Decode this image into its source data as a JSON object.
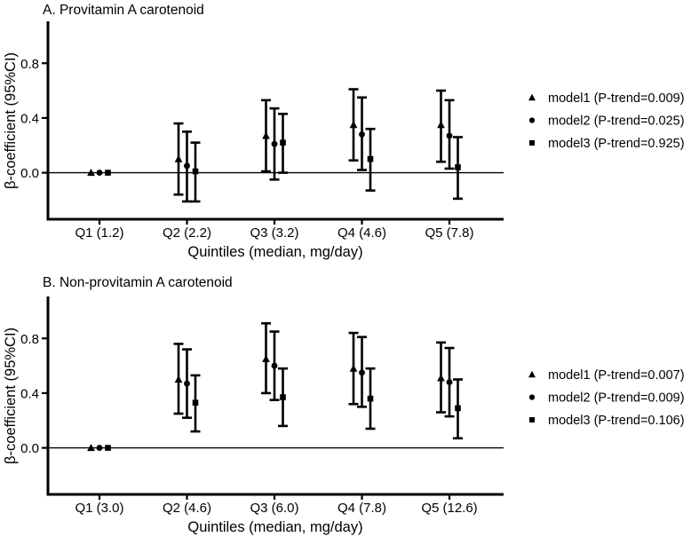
{
  "page": {
    "background": "#ffffff",
    "foreground": "#000000"
  },
  "chart_data": [
    {
      "type": "errorbar",
      "panel_label": "A",
      "title": "A. Provitamin A carotenoid",
      "xlabel": "Quintiles (median, mg/day)",
      "ylabel": "β-coefficient (95%CI)",
      "categories": [
        "Q1 (1.2)",
        "Q2 (2.2)",
        "Q3 (3.2)",
        "Q4 (4.6)",
        "Q5 (7.8)"
      ],
      "yticks": [
        0.0,
        0.4,
        0.8
      ],
      "ytick_labels": [
        "0.0",
        "0.4",
        "0.8"
      ],
      "ylim": [
        -0.34,
        1.1
      ],
      "grid": false,
      "legend_position": "right",
      "reference_line": 0,
      "series": [
        {
          "name": "model1 (P-trend=0.009)",
          "marker": "triangle",
          "values": [
            0,
            0.1,
            0.27,
            0.35,
            0.35
          ],
          "ci_low": [
            0,
            -0.16,
            0.01,
            0.09,
            0.08
          ],
          "ci_high": [
            0,
            0.36,
            0.53,
            0.61,
            0.6
          ]
        },
        {
          "name": "model2 (P-trend=0.025)",
          "marker": "circle",
          "values": [
            0,
            0.05,
            0.21,
            0.28,
            0.27
          ],
          "ci_low": [
            0,
            -0.21,
            -0.05,
            0.02,
            0.03
          ],
          "ci_high": [
            0,
            0.3,
            0.47,
            0.55,
            0.53
          ]
        },
        {
          "name": "model3 (P-trend=0.925)",
          "marker": "square",
          "values": [
            0,
            0.01,
            0.22,
            0.1,
            0.04
          ],
          "ci_low": [
            0,
            -0.21,
            0.0,
            -0.13,
            -0.19
          ],
          "ci_high": [
            0,
            0.22,
            0.43,
            0.32,
            0.26
          ]
        }
      ]
    },
    {
      "type": "errorbar",
      "panel_label": "B",
      "title": "B. Non-provitamin A carotenoid",
      "xlabel": "Quintiles (median, mg/day)",
      "ylabel": "β-coefficient (95%CI)",
      "categories": [
        "Q1 (3.0)",
        "Q2 (4.6)",
        "Q3 (6.0)",
        "Q4 (7.8)",
        "Q5 (12.6)"
      ],
      "yticks": [
        0.0,
        0.4,
        0.8
      ],
      "ytick_labels": [
        "0.0",
        "0.4",
        "0.8"
      ],
      "ylim": [
        -0.34,
        1.1
      ],
      "grid": false,
      "legend_position": "right",
      "reference_line": 0,
      "series": [
        {
          "name": "model1 (P-trend=0.007)",
          "marker": "triangle",
          "values": [
            0,
            0.5,
            0.65,
            0.58,
            0.51
          ],
          "ci_low": [
            0,
            0.25,
            0.4,
            0.32,
            0.26
          ],
          "ci_high": [
            0,
            0.76,
            0.91,
            0.84,
            0.77
          ]
        },
        {
          "name": "model2 (P-trend=0.009)",
          "marker": "circle",
          "values": [
            0,
            0.47,
            0.6,
            0.55,
            0.48
          ],
          "ci_low": [
            0,
            0.22,
            0.35,
            0.3,
            0.23
          ],
          "ci_high": [
            0,
            0.72,
            0.85,
            0.81,
            0.73
          ]
        },
        {
          "name": "model3 (P-trend=0.106)",
          "marker": "square",
          "values": [
            0,
            0.33,
            0.37,
            0.36,
            0.29
          ],
          "ci_low": [
            0,
            0.12,
            0.16,
            0.14,
            0.07
          ],
          "ci_high": [
            0,
            0.53,
            0.58,
            0.58,
            0.5
          ]
        }
      ]
    }
  ]
}
